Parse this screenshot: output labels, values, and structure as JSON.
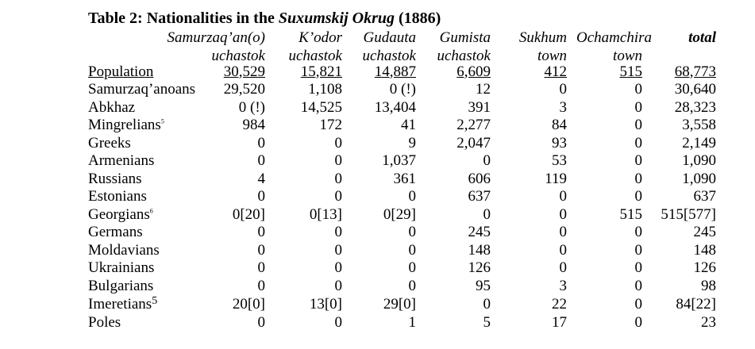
{
  "title": {
    "prefix": "Table 2: Nationalities in the ",
    "italic": "Suxumskij Okrug",
    "suffix": " (1886)"
  },
  "headers": {
    "line1": [
      "Samurzaq’an(o)",
      "K’odor",
      "Gudauta",
      "Gumista",
      "Sukhum",
      "Ochamchira",
      "total"
    ],
    "line2": [
      "uchastok",
      "uchastok",
      "uchastok",
      "uchastok",
      "town",
      "town",
      ""
    ]
  },
  "rows": [
    {
      "label": "Population",
      "fn": "",
      "values": [
        "30,529",
        "15,821",
        "14,887",
        "6,609",
        "412",
        "515",
        "68,773"
      ]
    },
    {
      "label": "Samurzaq’anoans",
      "fn": "",
      "values": [
        "29,520",
        "1,108",
        "0 (!)",
        "12",
        "0",
        "0",
        "30,640"
      ]
    },
    {
      "label": "Abkhaz",
      "fn": "",
      "values": [
        "0 (!)",
        "14,525",
        "13,404",
        "391",
        "3",
        "0",
        "28,323"
      ]
    },
    {
      "label": "Mingrelians",
      "fn": "5",
      "values": [
        "984",
        "172",
        "41",
        "2,277",
        "84",
        "0",
        "3,558"
      ]
    },
    {
      "label": "Greeks",
      "fn": "",
      "values": [
        "0",
        "0",
        "9",
        "2,047",
        "93",
        "0",
        "2,149"
      ]
    },
    {
      "label": "Armenians",
      "fn": "",
      "values": [
        "0",
        "0",
        "1,037",
        "0",
        "53",
        "0",
        "1,090"
      ]
    },
    {
      "label": "Russians",
      "fn": "",
      "values": [
        "4",
        "0",
        "361",
        "606",
        "119",
        "0",
        "1,090"
      ]
    },
    {
      "label": "Estonians",
      "fn": "",
      "values": [
        "0",
        "0",
        "0",
        "637",
        "0",
        "0",
        "637"
      ]
    },
    {
      "label": "Georgians",
      "fn": "6",
      "values": [
        "0[20]",
        "0[13]",
        "0[29]",
        "0",
        "0",
        "515",
        "515[577]"
      ]
    },
    {
      "label": "Germans",
      "fn": "",
      "values": [
        "0",
        "0",
        "0",
        "245",
        "0",
        "0",
        "245"
      ]
    },
    {
      "label": "Moldavians",
      "fn": "",
      "values": [
        "0",
        "0",
        "0",
        "148",
        "0",
        "0",
        "148"
      ]
    },
    {
      "label": "Ukrainians",
      "fn": "",
      "values": [
        "0",
        "0",
        "0",
        "126",
        "0",
        "0",
        "126"
      ]
    },
    {
      "label": "Bulgarians",
      "fn": "",
      "values": [
        "0",
        "0",
        "0",
        "95",
        "3",
        "0",
        "98"
      ]
    },
    {
      "label": "Imeretians",
      "fn": "5",
      "values": [
        "20[0]",
        "13[0]",
        "29[0]",
        "0",
        "22",
        "0",
        "84[22]"
      ]
    },
    {
      "label": "Poles",
      "fn": "",
      "values": [
        "0",
        "0",
        "1",
        "5",
        "17",
        "0",
        "23"
      ]
    }
  ]
}
